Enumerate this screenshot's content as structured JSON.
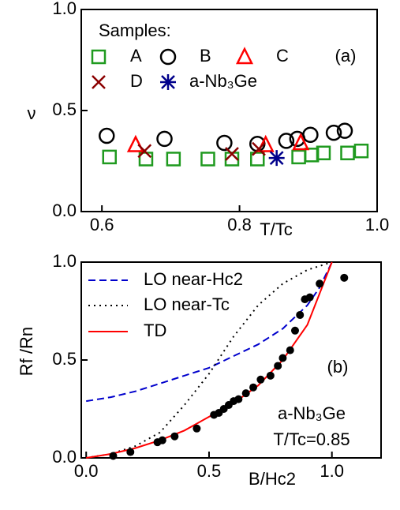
{
  "chart_data": [
    {
      "type": "scatter",
      "annotation": "(a)",
      "ylabel": "ν",
      "xlabel": "T/Tc",
      "legend_title": "Samples:",
      "xlim": [
        0.57,
        1.0
      ],
      "xticks": [
        0.6,
        0.8,
        {
          "value": 1,
          "label": "1.0"
        }
      ],
      "ylim": [
        0,
        1
      ],
      "yticks": [
        {
          "value": 0,
          "label": "0.0"
        },
        0.5,
        {
          "value": 1,
          "label": "1.0"
        }
      ],
      "series": [
        {
          "name": "A",
          "marker": "square",
          "color": "#1f9a1f",
          "x": [
            0.611,
            0.664,
            0.704,
            0.754,
            0.789,
            0.826,
            0.886,
            0.905,
            0.922,
            0.957,
            0.977
          ],
          "values": [
            0.27,
            0.26,
            0.26,
            0.26,
            0.26,
            0.26,
            0.27,
            0.28,
            0.29,
            0.29,
            0.3
          ]
        },
        {
          "name": "B",
          "marker": "circle",
          "color": "#000000",
          "x": [
            0.607,
            0.691,
            0.778,
            0.826,
            0.868,
            0.884,
            0.903,
            0.937,
            0.953
          ],
          "values": [
            0.375,
            0.36,
            0.34,
            0.335,
            0.35,
            0.36,
            0.38,
            0.39,
            0.4
          ]
        },
        {
          "name": "C",
          "marker": "triangle",
          "color": "#ff0000",
          "x": [
            0.649,
            0.838,
            0.889
          ],
          "values": [
            0.33,
            0.33,
            0.34
          ]
        },
        {
          "name": "D",
          "marker": "x",
          "color": "#8b0000",
          "x": [
            0.662,
            0.789,
            0.828
          ],
          "values": [
            0.3,
            0.285,
            0.31
          ]
        },
        {
          "name": "a-Nb₃Ge",
          "marker": "asterisk",
          "color": "#00008b",
          "x": [
            0.854
          ],
          "values": [
            0.265
          ]
        }
      ]
    },
    {
      "type": "line",
      "annotation": "(b)",
      "ylabel": "Rf /Rn",
      "xlabel": "B/Hc2",
      "notes": [
        "a-Nb₃Ge",
        "T/Tc=0.85"
      ],
      "xlim": [
        -0.02,
        1.2
      ],
      "xticks": [
        {
          "value": 0,
          "label": "0.0"
        },
        0.5,
        {
          "value": 1,
          "label": "1.0"
        }
      ],
      "ylim": [
        0,
        1
      ],
      "yticks": [
        {
          "value": 0,
          "label": "0.0"
        },
        0.5,
        {
          "value": 1,
          "label": "1.0"
        }
      ],
      "series": [
        {
          "name": "LO near-Hc2",
          "style": "dashed",
          "color": "#0000cc",
          "x": [
            0,
            0.1,
            0.2,
            0.3,
            0.4,
            0.5,
            0.6,
            0.7,
            0.8,
            0.9,
            0.95,
            1.0
          ],
          "values": [
            0.29,
            0.31,
            0.34,
            0.38,
            0.42,
            0.46,
            0.52,
            0.58,
            0.66,
            0.78,
            0.87,
            1.0
          ]
        },
        {
          "name": "LO near-Tc",
          "style": "dotted",
          "color": "#000000",
          "x": [
            0,
            0.1,
            0.2,
            0.3,
            0.4,
            0.5,
            0.6,
            0.7,
            0.8,
            0.9,
            1.0
          ],
          "values": [
            0,
            0.02,
            0.06,
            0.13,
            0.27,
            0.43,
            0.62,
            0.78,
            0.89,
            0.96,
            1.0
          ]
        },
        {
          "name": "TD",
          "style": "solid",
          "color": "#ff0000",
          "x": [
            0,
            0.1,
            0.2,
            0.3,
            0.4,
            0.5,
            0.6,
            0.7,
            0.8,
            0.9,
            1.0
          ],
          "values": [
            0,
            0.02,
            0.05,
            0.09,
            0.14,
            0.21,
            0.28,
            0.37,
            0.5,
            0.68,
            1.0
          ]
        },
        {
          "style": "dots",
          "color": "#000000",
          "x": [
            0.11,
            0.18,
            0.29,
            0.31,
            0.36,
            0.45,
            0.52,
            0.54,
            0.56,
            0.58,
            0.6,
            0.62,
            0.65,
            0.68,
            0.71,
            0.75,
            0.78,
            0.8,
            0.83,
            0.85,
            0.87,
            0.89,
            0.91,
            0.95,
            1.05
          ],
          "values": [
            0.01,
            0.03,
            0.08,
            0.09,
            0.11,
            0.15,
            0.22,
            0.23,
            0.25,
            0.27,
            0.29,
            0.3,
            0.33,
            0.36,
            0.4,
            0.42,
            0.47,
            0.51,
            0.55,
            0.65,
            0.73,
            0.81,
            0.82,
            0.89,
            0.92
          ]
        }
      ]
    }
  ]
}
